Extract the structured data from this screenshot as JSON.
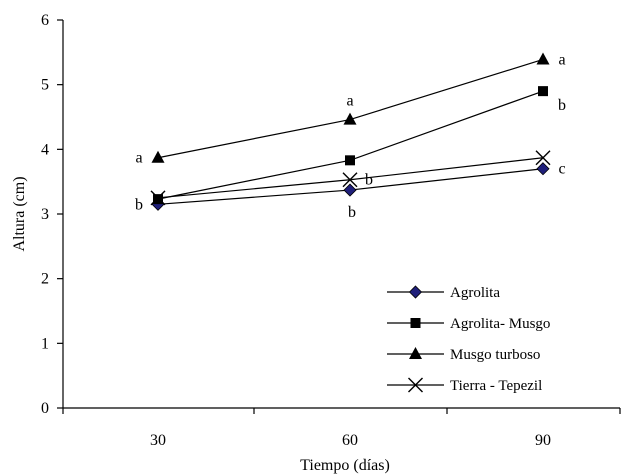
{
  "chart_data": {
    "type": "line",
    "xlabel": "Tiempo (días)",
    "ylabel": "Altura (cm)",
    "x": [
      30,
      60,
      90
    ],
    "categories": [
      "30",
      "60",
      "90"
    ],
    "ylim": [
      0,
      6
    ],
    "yticks": [
      "0",
      "1",
      "2",
      "3",
      "4",
      "5",
      "6"
    ],
    "grid": false,
    "legend_position": "bottom-right",
    "series": [
      {
        "name": "Agrolita",
        "marker": "diamond",
        "color": "#1f1f7a",
        "values": [
          3.15,
          3.37,
          3.7
        ]
      },
      {
        "name": "Agrolita- Musgo",
        "marker": "square",
        "color": "#000000",
        "values": [
          3.23,
          3.83,
          4.9
        ]
      },
      {
        "name": "Musgo turboso",
        "marker": "triangle",
        "color": "#000000",
        "values": [
          3.87,
          4.46,
          5.39
        ]
      },
      {
        "name": "Tierra - Tepezil",
        "marker": "x",
        "color": "#000000",
        "values": [
          3.25,
          3.53,
          3.87
        ]
      }
    ],
    "annotations": [
      {
        "x": 30,
        "y": 3.87,
        "text": "a",
        "anchor": "left"
      },
      {
        "x": 30,
        "y": 3.15,
        "text": "b",
        "anchor": "left"
      },
      {
        "x": 60,
        "y": 4.46,
        "text": "a",
        "anchor": "above"
      },
      {
        "x": 60,
        "y": 3.53,
        "text": "b",
        "anchor": "right"
      },
      {
        "x": 60,
        "y": 3.37,
        "text": "b",
        "anchor": "below"
      },
      {
        "x": 90,
        "y": 5.39,
        "text": "a",
        "anchor": "right"
      },
      {
        "x": 90,
        "y": 4.9,
        "text": "b",
        "anchor": "right-below"
      },
      {
        "x": 90,
        "y": 3.7,
        "text": "c",
        "anchor": "right"
      }
    ]
  }
}
